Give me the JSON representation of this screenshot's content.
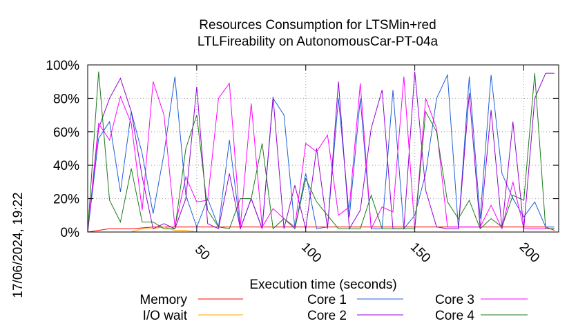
{
  "chart_data": {
    "type": "line",
    "title": "Resources Consumption for LTSMin+red",
    "subtitle": "LTLFireability on AutonomousCar-PT-04a",
    "xlabel": "Execution time (seconds)",
    "ylabel": "",
    "side_label": "17/06/2024, 19:22",
    "xlim": [
      0,
      216
    ],
    "ylim": [
      0,
      100
    ],
    "x_ticks": [
      50,
      100,
      150,
      200
    ],
    "y_ticks": [
      0,
      20,
      40,
      60,
      80,
      100
    ],
    "y_tick_labels": [
      "0%",
      "20%",
      "40%",
      "60%",
      "80%",
      "100%"
    ],
    "grid": true,
    "legend_position": "bottom",
    "series": [
      {
        "name": "Memory",
        "color": "#ff0000",
        "x": [
          0,
          5,
          10,
          20,
          30,
          40,
          50,
          60,
          70,
          80,
          90,
          100,
          110,
          120,
          130,
          140,
          150,
          160,
          170,
          180,
          190,
          200,
          210,
          214
        ],
        "y": [
          0,
          1,
          2,
          2,
          3,
          3,
          3,
          3,
          3,
          3,
          3,
          3,
          3,
          3,
          3,
          3,
          3,
          3,
          3,
          3,
          3,
          3,
          3,
          1
        ]
      },
      {
        "name": "I/O wait",
        "color": "#ffa500",
        "x": [
          0,
          20,
          25,
          30,
          35,
          40,
          45,
          50,
          55,
          60,
          214
        ],
        "y": [
          0,
          0,
          2,
          2,
          3,
          1,
          1,
          0,
          0,
          0,
          0
        ]
      },
      {
        "name": "Core 1",
        "color": "#1f5fd6",
        "x": [
          0,
          5,
          10,
          15,
          20,
          25,
          30,
          35,
          40,
          45,
          50,
          55,
          60,
          65,
          70,
          75,
          80,
          85,
          90,
          95,
          100,
          105,
          110,
          115,
          120,
          125,
          130,
          135,
          140,
          145,
          150,
          155,
          160,
          165,
          170,
          175,
          180,
          185,
          190,
          195,
          200,
          205,
          210,
          214
        ],
        "y": [
          0,
          56,
          66,
          24,
          72,
          47,
          11,
          47,
          93,
          22,
          3,
          20,
          3,
          55,
          2,
          20,
          2,
          80,
          70,
          2,
          35,
          2,
          3,
          80,
          9,
          80,
          2,
          2,
          85,
          2,
          10,
          35,
          80,
          94,
          2,
          93,
          8,
          94,
          35,
          20,
          9,
          18,
          3,
          3
        ]
      },
      {
        "name": "Core 2",
        "color": "#9400d3",
        "x": [
          0,
          5,
          10,
          15,
          20,
          25,
          30,
          35,
          40,
          45,
          50,
          55,
          60,
          65,
          70,
          75,
          80,
          85,
          90,
          95,
          100,
          105,
          110,
          115,
          120,
          125,
          130,
          135,
          140,
          145,
          150,
          155,
          160,
          165,
          170,
          175,
          180,
          185,
          190,
          195,
          200,
          205,
          210,
          214
        ],
        "y": [
          0,
          62,
          80,
          92,
          72,
          33,
          2,
          5,
          2,
          20,
          87,
          5,
          2,
          35,
          2,
          20,
          2,
          81,
          2,
          28,
          2,
          50,
          2,
          90,
          2,
          13,
          62,
          85,
          2,
          2,
          96,
          25,
          3,
          2,
          2,
          83,
          2,
          73,
          2,
          66,
          2,
          80,
          95,
          95
        ]
      },
      {
        "name": "Core 3",
        "color": "#ff00ff",
        "x": [
          0,
          5,
          10,
          15,
          20,
          25,
          30,
          35,
          40,
          45,
          50,
          55,
          60,
          65,
          70,
          75,
          80,
          85,
          90,
          95,
          100,
          105,
          110,
          115,
          120,
          125,
          130,
          135,
          140,
          145,
          150,
          155,
          160,
          165,
          170,
          175,
          180,
          185,
          190,
          195,
          200,
          205,
          210,
          214
        ],
        "y": [
          0,
          65,
          55,
          81,
          65,
          13,
          90,
          70,
          3,
          33,
          18,
          19,
          80,
          89,
          3,
          77,
          3,
          14,
          8,
          3,
          53,
          48,
          58,
          10,
          15,
          89,
          2,
          15,
          12,
          93,
          2,
          80,
          62,
          3,
          3,
          3,
          3,
          16,
          2,
          30,
          2,
          2,
          2,
          2
        ]
      },
      {
        "name": "Core 4",
        "color": "#1a7a1a",
        "x": [
          0,
          5,
          10,
          15,
          20,
          25,
          30,
          35,
          40,
          45,
          50,
          55,
          60,
          65,
          70,
          75,
          80,
          85,
          90,
          95,
          100,
          105,
          110,
          115,
          120,
          125,
          130,
          135,
          140,
          145,
          150,
          155,
          160,
          165,
          170,
          175,
          180,
          185,
          190,
          195,
          200,
          205,
          210,
          214
        ],
        "y": [
          0,
          96,
          19,
          6,
          38,
          6,
          6,
          2,
          2,
          50,
          70,
          13,
          3,
          2,
          20,
          20,
          53,
          2,
          8,
          2,
          32,
          18,
          10,
          2,
          2,
          2,
          22,
          2,
          2,
          2,
          2,
          72,
          60,
          18,
          8,
          19,
          2,
          8,
          3,
          22,
          19,
          95,
          2,
          2
        ]
      }
    ]
  }
}
